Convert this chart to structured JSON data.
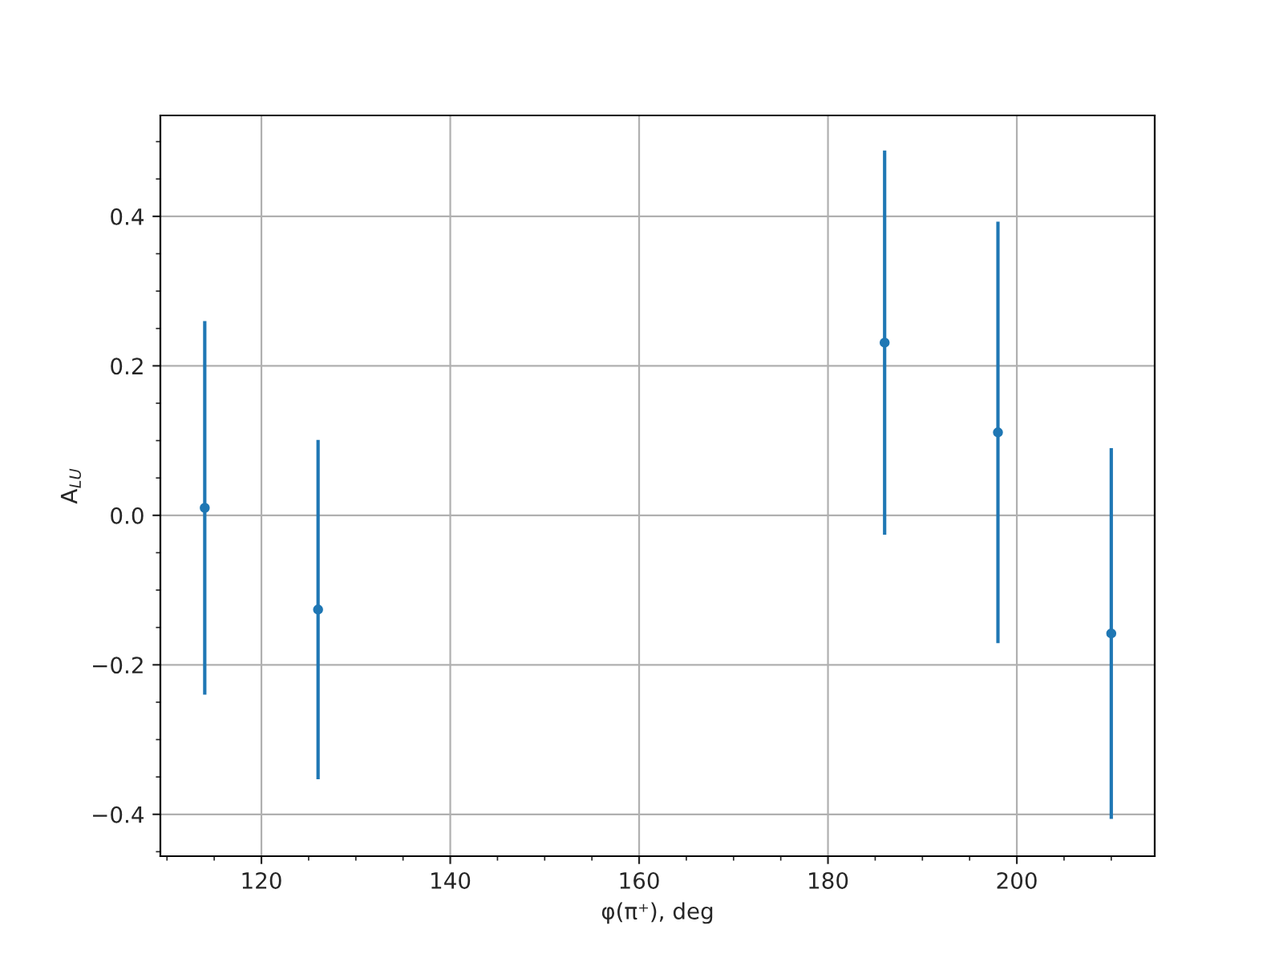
{
  "chart_data": {
    "type": "scatter",
    "xlabel": "φ(π⁺), deg",
    "ylabel": "A$_{LU}$",
    "x": [
      114,
      126,
      186,
      198,
      210
    ],
    "series": [
      {
        "color": "#1f77b4",
        "values": [
          0.01,
          -0.126,
          0.231,
          0.111,
          -0.158
        ],
        "errors": [
          0.25,
          0.227,
          0.257,
          0.282,
          0.248
        ]
      }
    ],
    "marker": "circle",
    "xlim": [
      109.3,
      214.6
    ],
    "ylim": [
      -0.456,
      0.535
    ],
    "xticks": [
      120,
      140,
      160,
      180,
      200
    ],
    "yticks": [
      {
        "value": -0.4,
        "label": "−0.4"
      },
      {
        "value": -0.2,
        "label": "−0.2"
      },
      {
        "value": 0.0,
        "label": "0.0"
      },
      {
        "value": 0.2,
        "label": "0.2"
      },
      {
        "value": 0.4,
        "label": "0.4"
      }
    ],
    "grid": true
  }
}
